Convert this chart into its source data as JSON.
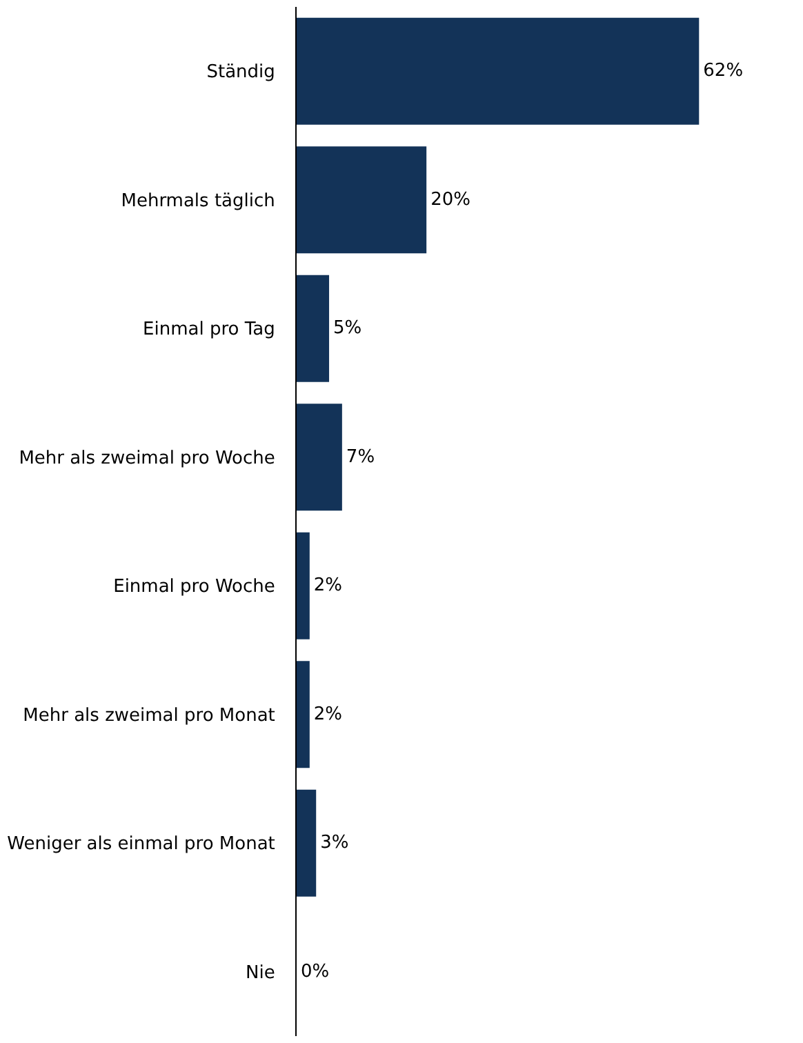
{
  "chart_data": {
    "type": "bar",
    "orientation": "horizontal",
    "categories": [
      "Ständig",
      "Mehrmals täglich",
      "Einmal pro Tag",
      "Mehr als zweimal pro Woche",
      "Einmal pro Woche",
      "Mehr als zweimal pro Monat",
      "Weniger als einmal pro Monat",
      "Nie"
    ],
    "values": [
      62,
      20,
      5,
      7,
      2,
      2,
      3,
      0
    ],
    "value_labels": [
      "62%",
      "20%",
      "5%",
      "7%",
      "2%",
      "2%",
      "3%",
      "0%"
    ],
    "color": "#133358",
    "tick_labels": "y"
  }
}
